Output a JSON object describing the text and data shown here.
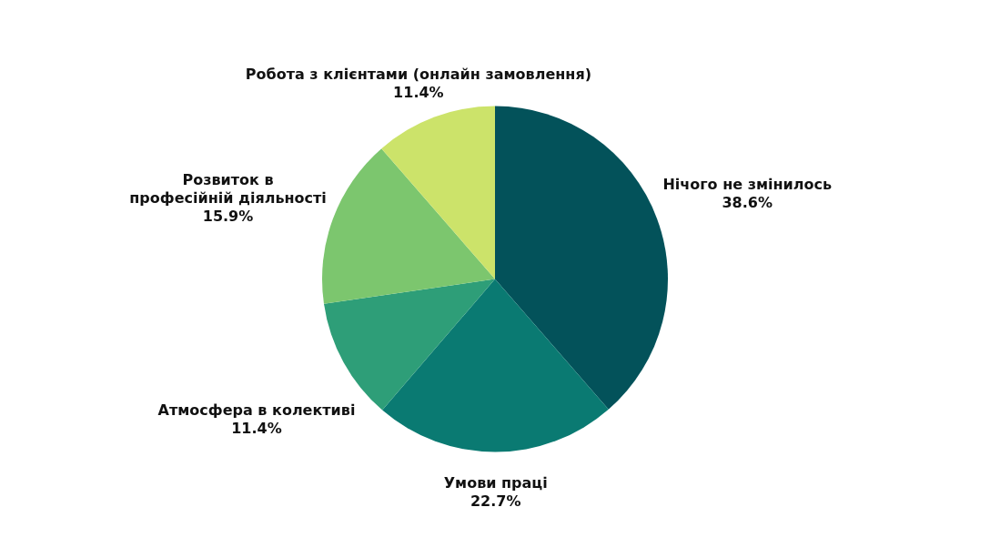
{
  "chart_data": {
    "type": "pie",
    "categories": [
      "Нічого не змінилось",
      "Умови праці",
      "Атмосфера в колективі",
      "Розвиток в\nпрофесійній діяльності",
      "Робота з клієнтами (онлайн замовлення)"
    ],
    "values": [
      38.6,
      22.7,
      11.4,
      15.9,
      11.4
    ],
    "value_labels": [
      "38.6%",
      "22.7%",
      "11.4%",
      "15.9%",
      "11.4%"
    ],
    "colors": [
      "#03525a",
      "#0a7a72",
      "#2e9e78",
      "#7cc66e",
      "#cce36a"
    ],
    "legend": false
  }
}
